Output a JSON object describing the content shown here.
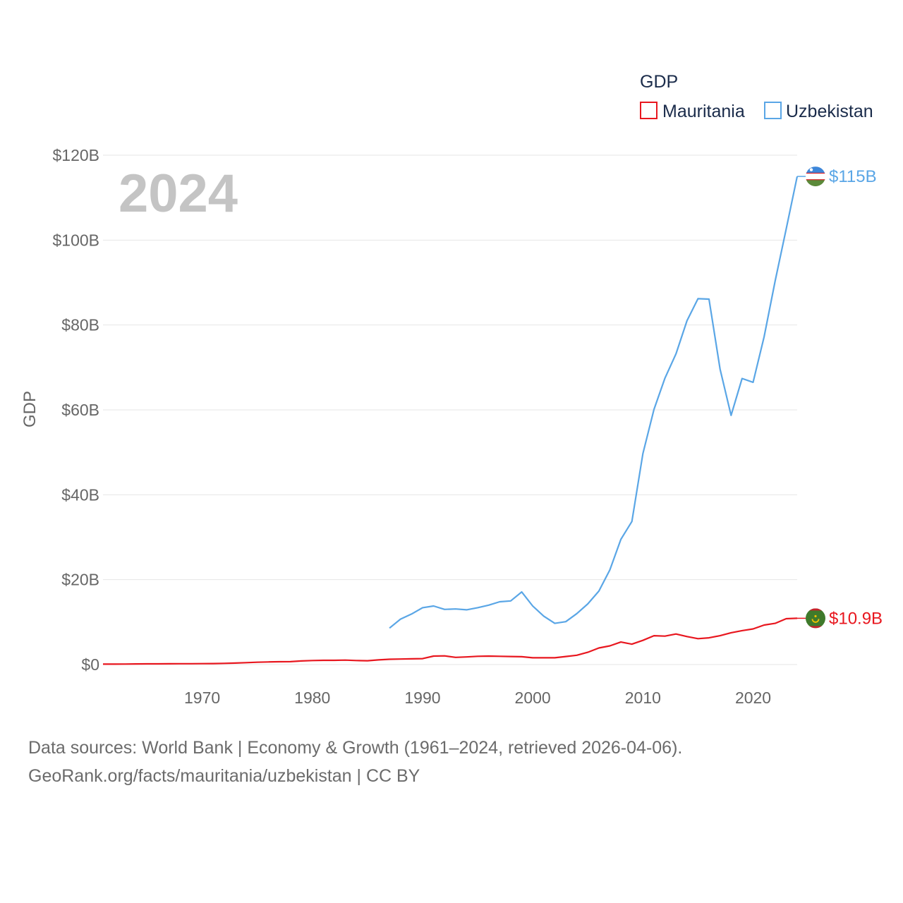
{
  "chart_data": {
    "type": "line",
    "year_label": "2024",
    "ylabel": "GDP",
    "legend_title": "GDP",
    "legend_position": "top-right",
    "ylim": [
      0,
      120
    ],
    "xlim": [
      1961,
      2024
    ],
    "y_ticks": [
      0,
      20,
      40,
      60,
      80,
      100,
      120
    ],
    "y_tick_labels": [
      "$0",
      "$20B",
      "$40B",
      "$60B",
      "$80B",
      "$100B",
      "$120B"
    ],
    "x_ticks": [
      1970,
      1980,
      1990,
      2000,
      2010,
      2020
    ],
    "x_tick_labels": [
      "1970",
      "1980",
      "1990",
      "2000",
      "2010",
      "2020"
    ],
    "series": [
      {
        "name": "Mauritania",
        "color": "#e8171f",
        "end_label": "$10.9B",
        "flag_icon": "mauritania-flag-icon",
        "points": [
          [
            1961,
            0.1
          ],
          [
            1962,
            0.1
          ],
          [
            1963,
            0.12
          ],
          [
            1964,
            0.15
          ],
          [
            1965,
            0.16
          ],
          [
            1966,
            0.17
          ],
          [
            1967,
            0.18
          ],
          [
            1968,
            0.2
          ],
          [
            1969,
            0.2
          ],
          [
            1970,
            0.21
          ],
          [
            1971,
            0.24
          ],
          [
            1972,
            0.28
          ],
          [
            1973,
            0.35
          ],
          [
            1974,
            0.45
          ],
          [
            1975,
            0.55
          ],
          [
            1976,
            0.62
          ],
          [
            1977,
            0.66
          ],
          [
            1978,
            0.68
          ],
          [
            1979,
            0.85
          ],
          [
            1980,
            0.95
          ],
          [
            1981,
            1.0
          ],
          [
            1982,
            1.0
          ],
          [
            1983,
            1.05
          ],
          [
            1984,
            0.95
          ],
          [
            1985,
            0.9
          ],
          [
            1986,
            1.1
          ],
          [
            1987,
            1.25
          ],
          [
            1988,
            1.3
          ],
          [
            1989,
            1.35
          ],
          [
            1990,
            1.4
          ],
          [
            1991,
            2.0
          ],
          [
            1992,
            2.05
          ],
          [
            1993,
            1.7
          ],
          [
            1994,
            1.8
          ],
          [
            1995,
            1.95
          ],
          [
            1996,
            2.0
          ],
          [
            1997,
            1.95
          ],
          [
            1998,
            1.9
          ],
          [
            1999,
            1.85
          ],
          [
            2000,
            1.6
          ],
          [
            2001,
            1.6
          ],
          [
            2002,
            1.6
          ],
          [
            2003,
            1.9
          ],
          [
            2004,
            2.2
          ],
          [
            2005,
            2.9
          ],
          [
            2006,
            3.9
          ],
          [
            2007,
            4.4
          ],
          [
            2008,
            5.3
          ],
          [
            2009,
            4.8
          ],
          [
            2010,
            5.7
          ],
          [
            2011,
            6.8
          ],
          [
            2012,
            6.7
          ],
          [
            2013,
            7.2
          ],
          [
            2014,
            6.6
          ],
          [
            2015,
            6.1
          ],
          [
            2016,
            6.3
          ],
          [
            2017,
            6.8
          ],
          [
            2018,
            7.5
          ],
          [
            2019,
            8.0
          ],
          [
            2020,
            8.4
          ],
          [
            2021,
            9.3
          ],
          [
            2022,
            9.7
          ],
          [
            2023,
            10.8
          ],
          [
            2024,
            10.9
          ]
        ]
      },
      {
        "name": "Uzbekistan",
        "color": "#5aa6e6",
        "end_label": "$115B",
        "flag_icon": "uzbekistan-flag-icon",
        "points": [
          [
            1987,
            8.6
          ],
          [
            1988,
            10.7
          ],
          [
            1989,
            11.9
          ],
          [
            1990,
            13.4
          ],
          [
            1991,
            13.8
          ],
          [
            1992,
            13.0
          ],
          [
            1993,
            13.1
          ],
          [
            1994,
            12.9
          ],
          [
            1995,
            13.4
          ],
          [
            1996,
            14.0
          ],
          [
            1997,
            14.8
          ],
          [
            1998,
            15.0
          ],
          [
            1999,
            17.1
          ],
          [
            2000,
            13.8
          ],
          [
            2001,
            11.4
          ],
          [
            2002,
            9.7
          ],
          [
            2003,
            10.1
          ],
          [
            2004,
            12.0
          ],
          [
            2005,
            14.3
          ],
          [
            2006,
            17.3
          ],
          [
            2007,
            22.3
          ],
          [
            2008,
            29.5
          ],
          [
            2009,
            33.7
          ],
          [
            2010,
            49.7
          ],
          [
            2011,
            60.1
          ],
          [
            2012,
            67.5
          ],
          [
            2013,
            73.2
          ],
          [
            2014,
            81.0
          ],
          [
            2015,
            86.2
          ],
          [
            2016,
            86.1
          ],
          [
            2017,
            69.6
          ],
          [
            2018,
            58.7
          ],
          [
            2019,
            67.4
          ],
          [
            2020,
            66.5
          ],
          [
            2021,
            77.2
          ],
          [
            2022,
            90.4
          ],
          [
            2023,
            102.6
          ],
          [
            2024,
            115.0
          ]
        ]
      }
    ]
  },
  "footer": {
    "line1": "Data sources: World Bank | Economy & Growth (1961–2024, retrieved 2026-04-06).",
    "line2": "GeoRank.org/facts/mauritania/uzbekistan | CC BY"
  }
}
